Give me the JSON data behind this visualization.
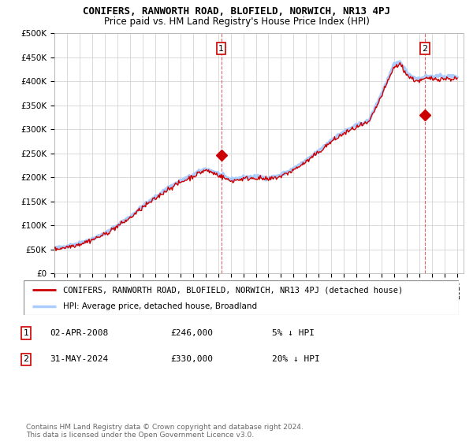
{
  "title": "CONIFERS, RANWORTH ROAD, BLOFIELD, NORWICH, NR13 4PJ",
  "subtitle": "Price paid vs. HM Land Registry's House Price Index (HPI)",
  "ylim": [
    0,
    500000
  ],
  "yticks": [
    0,
    50000,
    100000,
    150000,
    200000,
    250000,
    300000,
    350000,
    400000,
    450000,
    500000
  ],
  "ytick_labels": [
    "£0",
    "£50K",
    "£100K",
    "£150K",
    "£200K",
    "£250K",
    "£300K",
    "£350K",
    "£400K",
    "£450K",
    "£500K"
  ],
  "xlim_start": 1995.0,
  "xlim_end": 2027.5,
  "xticks": [
    1995,
    1996,
    1997,
    1998,
    1999,
    2000,
    2001,
    2002,
    2003,
    2004,
    2005,
    2006,
    2007,
    2008,
    2009,
    2010,
    2011,
    2012,
    2013,
    2014,
    2015,
    2016,
    2017,
    2018,
    2019,
    2020,
    2021,
    2022,
    2023,
    2024,
    2025,
    2026,
    2027
  ],
  "background_color": "#ffffff",
  "plot_bg_color": "#ffffff",
  "grid_color": "#cccccc",
  "red_line_color": "#cc0000",
  "blue_line_color": "#aaccff",
  "sale1_x": 2008.25,
  "sale1_y": 246000,
  "sale2_x": 2024.42,
  "sale2_y": 330000,
  "legend_line1": "CONIFERS, RANWORTH ROAD, BLOFIELD, NORWICH, NR13 4PJ (detached house)",
  "legend_line2": "HPI: Average price, detached house, Broadland",
  "annotation1_date": "02-APR-2008",
  "annotation1_price": "£246,000",
  "annotation1_hpi": "5% ↓ HPI",
  "annotation2_date": "31-MAY-2024",
  "annotation2_price": "£330,000",
  "annotation2_hpi": "20% ↓ HPI",
  "footer": "Contains HM Land Registry data © Crown copyright and database right 2024.\nThis data is licensed under the Open Government Licence v3.0.",
  "title_fontsize": 9,
  "subtitle_fontsize": 8.5
}
